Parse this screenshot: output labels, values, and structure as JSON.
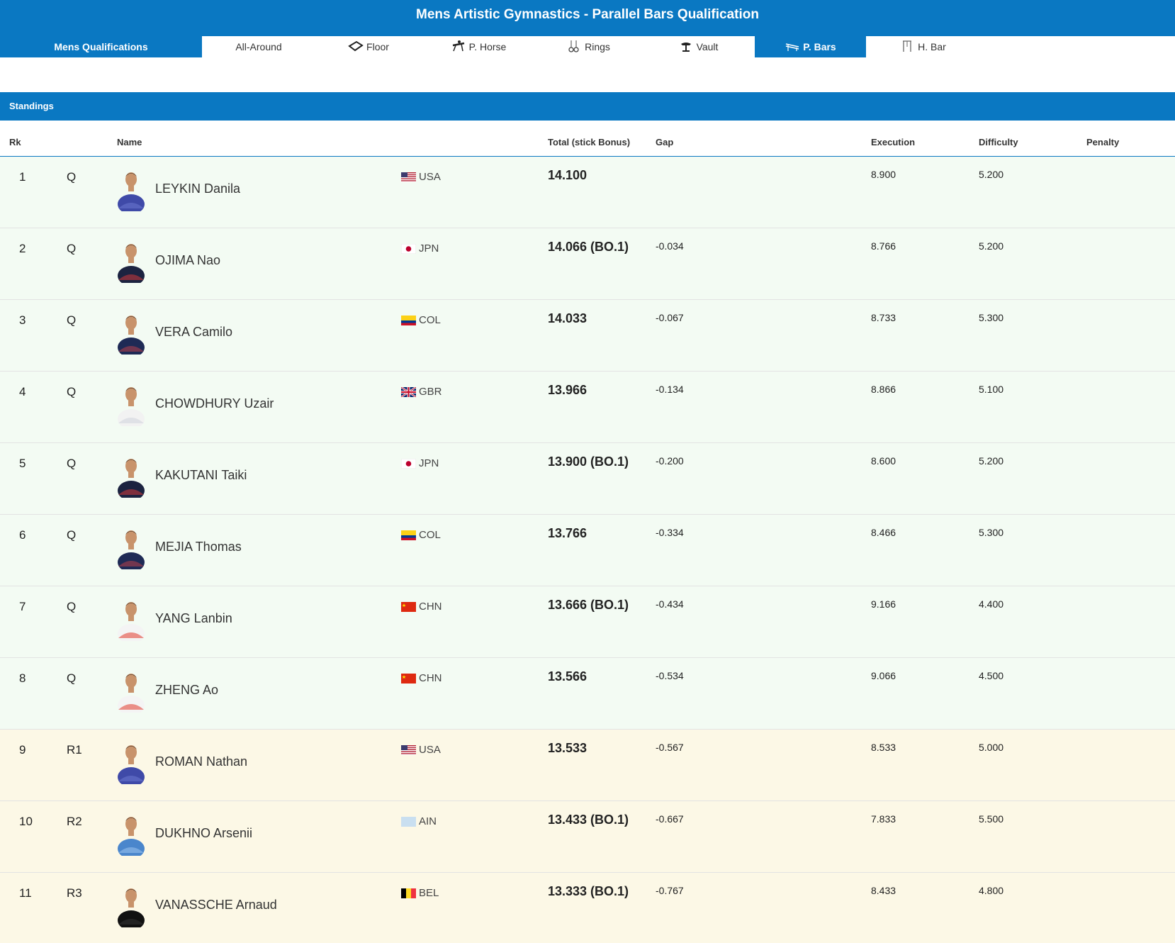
{
  "header": {
    "title": "Mens Artistic Gymnastics - Parallel Bars Qualification"
  },
  "tabs": [
    {
      "label": "Mens Qualifications",
      "icon": ""
    },
    {
      "label": "All-Around",
      "icon": ""
    },
    {
      "label": "Floor",
      "icon": "floor-icon"
    },
    {
      "label": "P. Horse",
      "icon": "pommel-horse-icon"
    },
    {
      "label": "Rings",
      "icon": "rings-icon"
    },
    {
      "label": "Vault",
      "icon": "vault-icon"
    },
    {
      "label": "P. Bars",
      "icon": "parallel-bars-icon"
    },
    {
      "label": "H. Bar",
      "icon": "high-bar-icon"
    }
  ],
  "standings": {
    "label": "Standings"
  },
  "columns": {
    "rk": "Rk",
    "name": "Name",
    "total": "Total (stick Bonus)",
    "gap": "Gap",
    "execution": "Execution",
    "difficulty": "Difficulty",
    "penalty": "Penalty"
  },
  "colors": {
    "accent": "#0a78c2",
    "qualified_row": "#f3fbf3",
    "reserve_row": "#fcf8e6"
  },
  "rows": [
    {
      "rank": "1",
      "qual": "Q",
      "name": "LEYKIN Danila",
      "country": "USA",
      "flag": "usa-flag",
      "total": "14.100",
      "gap": "",
      "execution": "8.900",
      "difficulty": "5.200",
      "penalty": ""
    },
    {
      "rank": "2",
      "qual": "Q",
      "name": "OJIMA Nao",
      "country": "JPN",
      "flag": "jpn-flag",
      "total": "14.066 (BO.1)",
      "gap": "-0.034",
      "execution": "8.766",
      "difficulty": "5.200",
      "penalty": ""
    },
    {
      "rank": "3",
      "qual": "Q",
      "name": "VERA Camilo",
      "country": "COL",
      "flag": "col-flag",
      "total": "14.033",
      "gap": "-0.067",
      "execution": "8.733",
      "difficulty": "5.300",
      "penalty": ""
    },
    {
      "rank": "4",
      "qual": "Q",
      "name": "CHOWDHURY Uzair",
      "country": "GBR",
      "flag": "gbr-flag",
      "total": "13.966",
      "gap": "-0.134",
      "execution": "8.866",
      "difficulty": "5.100",
      "penalty": ""
    },
    {
      "rank": "5",
      "qual": "Q",
      "name": "KAKUTANI Taiki",
      "country": "JPN",
      "flag": "jpn-flag",
      "total": "13.900 (BO.1)",
      "gap": "-0.200",
      "execution": "8.600",
      "difficulty": "5.200",
      "penalty": ""
    },
    {
      "rank": "6",
      "qual": "Q",
      "name": "MEJIA Thomas",
      "country": "COL",
      "flag": "col-flag",
      "total": "13.766",
      "gap": "-0.334",
      "execution": "8.466",
      "difficulty": "5.300",
      "penalty": ""
    },
    {
      "rank": "7",
      "qual": "Q",
      "name": "YANG Lanbin",
      "country": "CHN",
      "flag": "chn-flag",
      "total": "13.666 (BO.1)",
      "gap": "-0.434",
      "execution": "9.166",
      "difficulty": "4.400",
      "penalty": ""
    },
    {
      "rank": "8",
      "qual": "Q",
      "name": "ZHENG Ao",
      "country": "CHN",
      "flag": "chn-flag",
      "total": "13.566",
      "gap": "-0.534",
      "execution": "9.066",
      "difficulty": "4.500",
      "penalty": ""
    },
    {
      "rank": "9",
      "qual": "R1",
      "name": "ROMAN Nathan",
      "country": "USA",
      "flag": "usa-flag",
      "total": "13.533",
      "gap": "-0.567",
      "execution": "8.533",
      "difficulty": "5.000",
      "penalty": ""
    },
    {
      "rank": "10",
      "qual": "R2",
      "name": "DUKHNO Arsenii",
      "country": "AIN",
      "flag": "ain-flag",
      "total": "13.433 (BO.1)",
      "gap": "-0.667",
      "execution": "7.833",
      "difficulty": "5.500",
      "penalty": ""
    },
    {
      "rank": "11",
      "qual": "R3",
      "name": "VANASSCHE Arnaud",
      "country": "BEL",
      "flag": "bel-flag",
      "total": "13.333 (BO.1)",
      "gap": "-0.767",
      "execution": "8.433",
      "difficulty": "4.800",
      "penalty": ""
    }
  ]
}
